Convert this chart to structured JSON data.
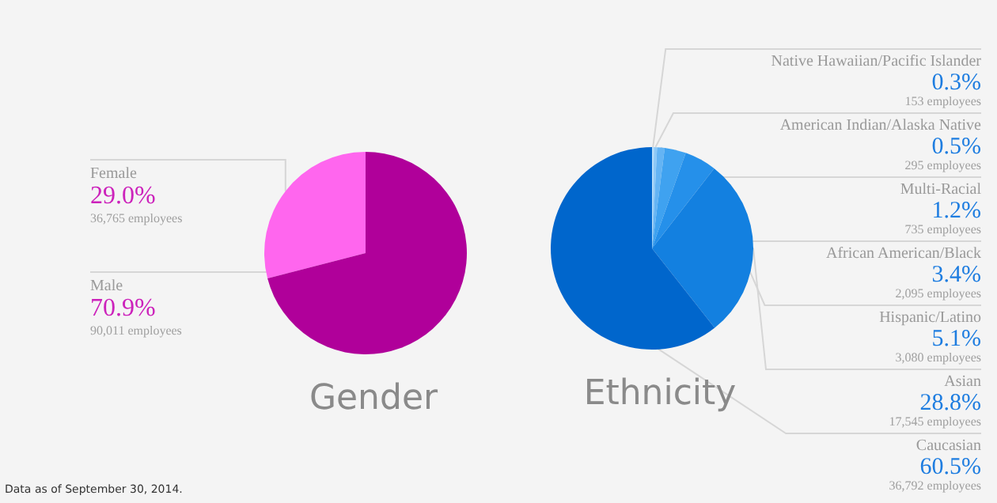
{
  "chart_data": [
    {
      "type": "pie",
      "title": "Gender",
      "categories": [
        "Female",
        "Male"
      ],
      "values": [
        29.0,
        70.9
      ],
      "colors": [
        "#ff66ee",
        "#b0009a"
      ],
      "value_labels": [
        "29.0%\n36,765 employees",
        "70.9%\n90,011 employees"
      ],
      "annotations": [
        "Data as of September 30, 2014."
      ]
    },
    {
      "type": "pie",
      "title": "Ethnicity",
      "categories": [
        "Native Hawaiian/Pacific Islander",
        "American Indian/Alaska Native",
        "Multi-Racial",
        "African American/Black",
        "Hispanic/Latino",
        "Asian",
        "Caucasian"
      ],
      "values": [
        0.3,
        0.5,
        1.2,
        3.4,
        5.1,
        28.8,
        60.5
      ],
      "colors": [
        "#b5dcfa",
        "#8cc8f7",
        "#64b4f4",
        "#3fa2f0",
        "#2590ea",
        "#1380e0",
        "#0066cc"
      ],
      "value_labels": [
        "0.3%\n153 employees",
        "0.5%\n295 employees",
        "1.2%\n735 employees",
        "3.4%\n2,095 employees",
        "5.1%\n3,080 employees",
        "28.8%\n17,545 employees",
        "60.5%\n36,792 employees"
      ]
    }
  ]
}
